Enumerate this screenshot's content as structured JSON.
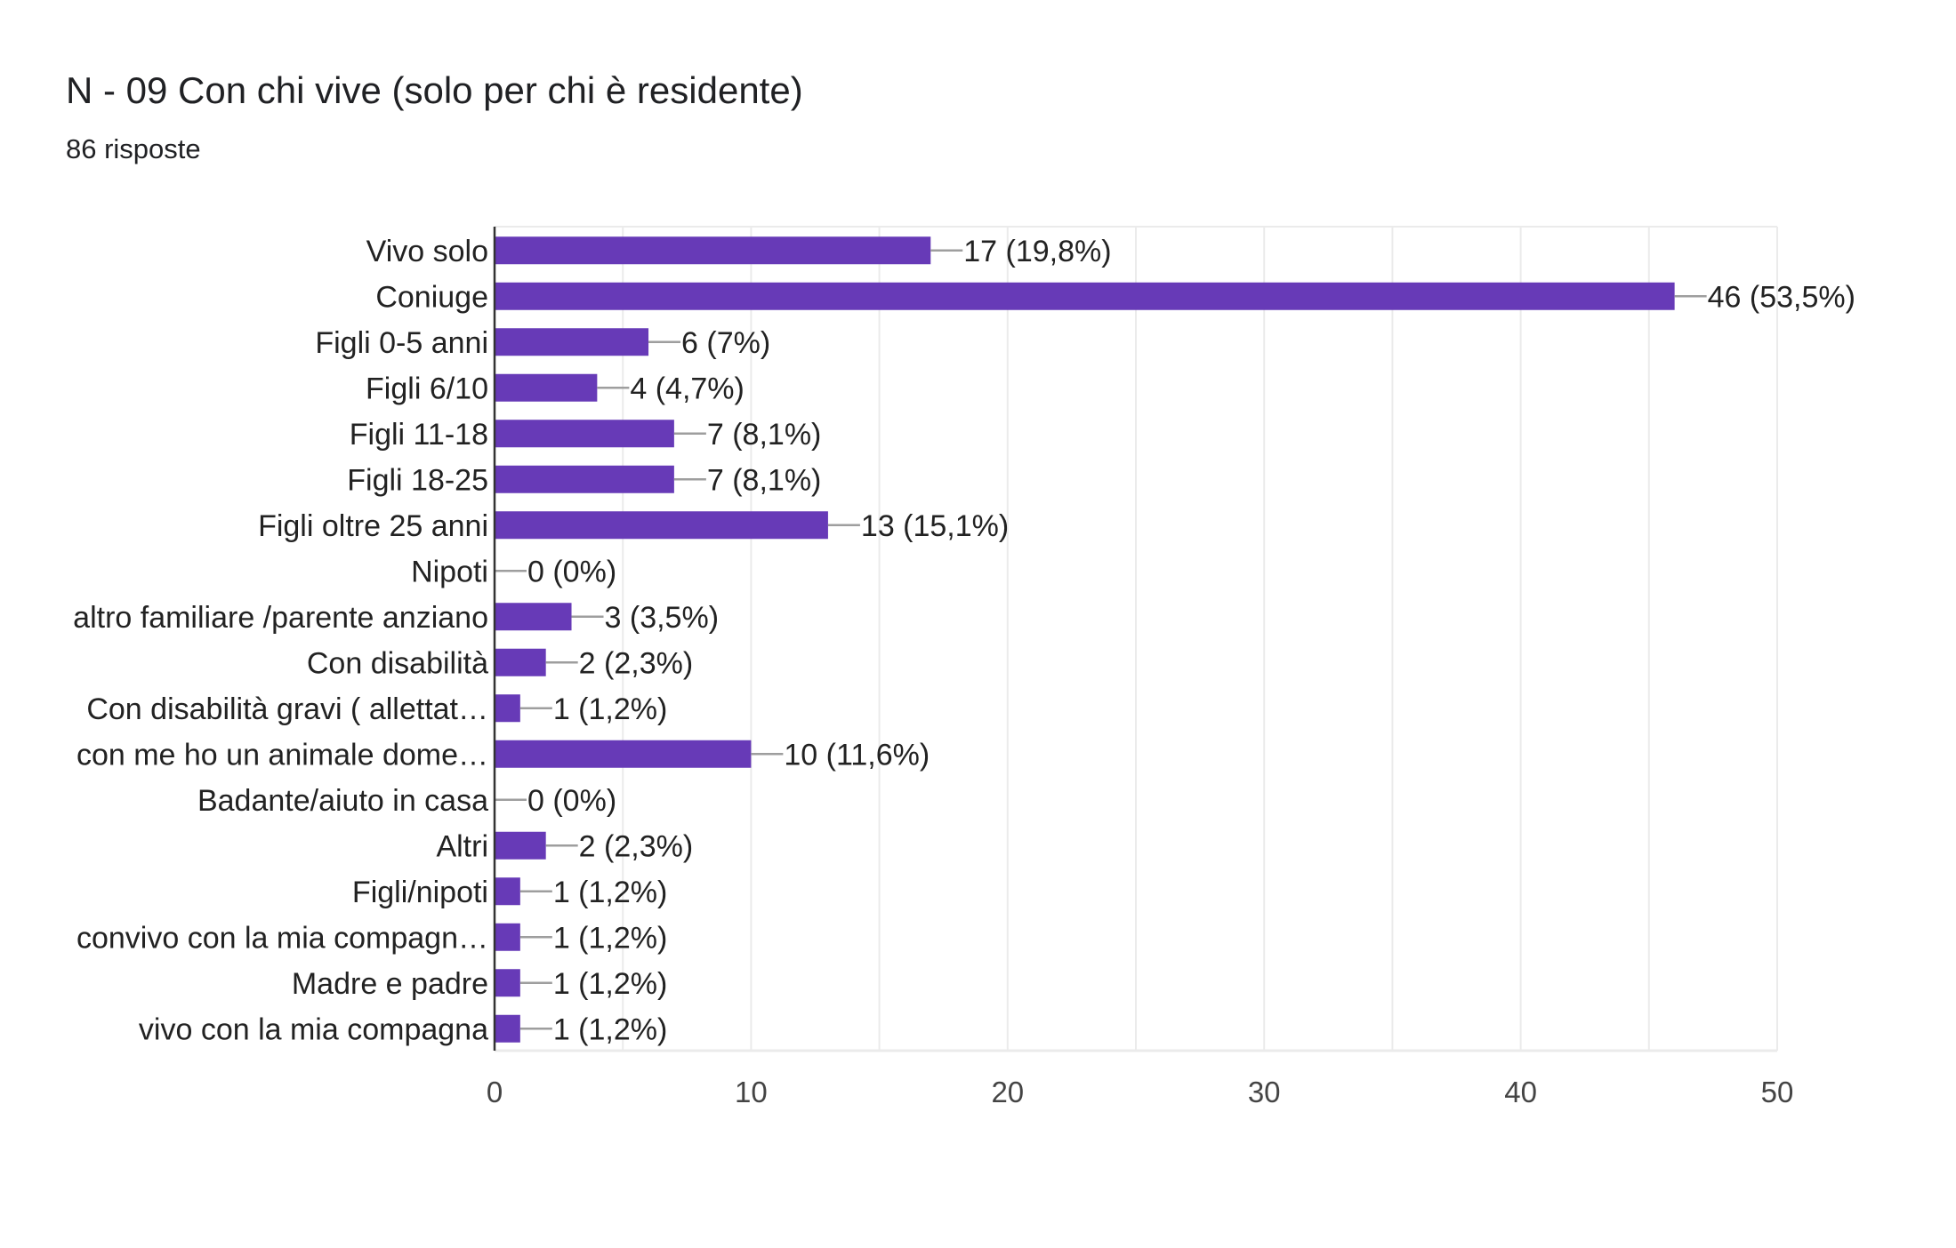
{
  "header": {
    "title": "N - 09 Con chi vive (solo per chi è residente)",
    "responses": "86 risposte"
  },
  "colors": {
    "bar": "#673ab7",
    "grid": "#ebebeb",
    "leader": "#9e9e9e"
  },
  "chart_data": {
    "type": "bar",
    "orientation": "horizontal",
    "title": "N - 09 Con chi vive (solo per chi è residente)",
    "xlabel": "",
    "ylabel": "",
    "xlim": [
      0,
      50
    ],
    "ticks": [
      0,
      10,
      20,
      30,
      40,
      50
    ],
    "grid": true,
    "categories": [
      "Vivo solo",
      "Coniuge",
      "Figli 0-5 anni",
      "Figli 6/10",
      "Figli 11-18",
      "Figli 18-25",
      "Figli oltre 25 anni",
      "Nipoti",
      "altro familiare /parente anziano",
      "Con disabilità",
      "Con disabilità gravi ( allettat…",
      "con me ho un animale dome…",
      "Badante/aiuto in casa",
      "Altri",
      "Figli/nipoti",
      "convivo con la mia compagn…",
      "Madre e padre",
      "vivo con la mia compagna"
    ],
    "values": [
      17,
      46,
      6,
      4,
      7,
      7,
      13,
      0,
      3,
      2,
      1,
      10,
      0,
      2,
      1,
      1,
      1,
      1
    ],
    "data_labels": [
      "17 (19,8%)",
      "46 (53,5%)",
      "6 (7%)",
      "4 (4,7%)",
      "7 (8,1%)",
      "7 (8,1%)",
      "13 (15,1%)",
      "0 (0%)",
      "3 (3,5%)",
      "2 (2,3%)",
      "1 (1,2%)",
      "10 (11,6%)",
      "0 (0%)",
      "2 (2,3%)",
      "1 (1,2%)",
      "1 (1,2%)",
      "1 (1,2%)",
      "1 (1,2%)"
    ]
  }
}
